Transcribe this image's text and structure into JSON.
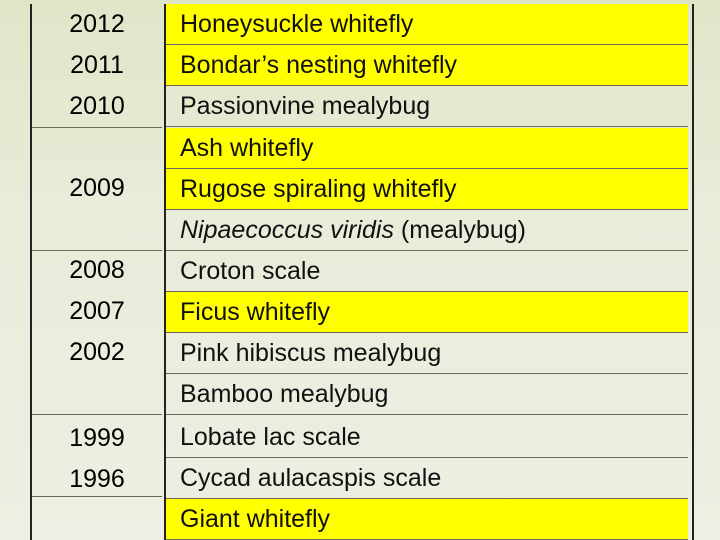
{
  "colors": {
    "highlight": "#ffff00",
    "border": "#222222",
    "background": "#e9ecd9"
  },
  "groups": [
    {
      "years": [
        "2012",
        "2011",
        "2010"
      ]
    },
    {
      "years": [
        "2009"
      ]
    },
    {
      "years": [
        "2008",
        "2007",
        "2002"
      ]
    },
    {
      "years": [
        "1999",
        "1996"
      ]
    }
  ],
  "pests": [
    {
      "name": "Honeysuckle whitefly",
      "highlighted": true
    },
    {
      "name": "Bondar’s nesting whitefly",
      "highlighted": true
    },
    {
      "name": "Passionvine mealybug",
      "highlighted": false
    },
    {
      "name": "Ash whitefly",
      "highlighted": true
    },
    {
      "name": "Rugose spiraling whitefly",
      "highlighted": true
    },
    {
      "name_italic": "Nipaecoccus viridis",
      "name_rest": " (mealybug)",
      "highlighted": false
    },
    {
      "name": "Croton scale",
      "highlighted": false
    },
    {
      "name": "Ficus whitefly",
      "highlighted": true
    },
    {
      "name": "Pink hibiscus mealybug",
      "highlighted": false
    },
    {
      "name": "Bamboo mealybug",
      "highlighted": false
    },
    {
      "name": "Lobate lac scale",
      "highlighted": false
    },
    {
      "name": "Cycad aulacaspis scale",
      "highlighted": false
    },
    {
      "name": "Giant whitefly",
      "highlighted": true
    }
  ]
}
